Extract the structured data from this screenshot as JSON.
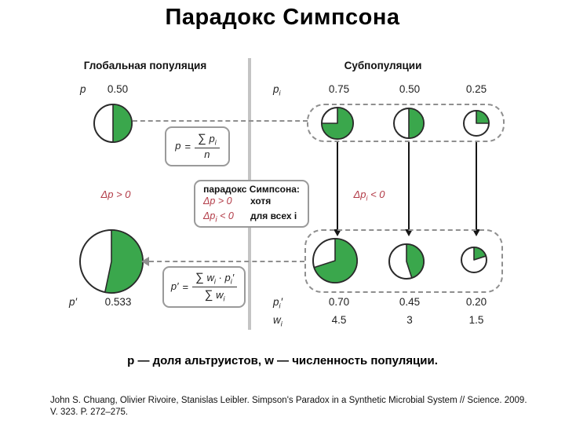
{
  "title": "Парадокс Симпсона",
  "colors": {
    "green": "#3aa74c",
    "red": "#b23b47"
  },
  "left": {
    "header": "Глобальная популяция",
    "top": {
      "var": "p",
      "sub": "",
      "prime": "",
      "value": "0.50",
      "fraction": 0.5
    },
    "delta": {
      "pre": "Δp",
      "sub": "",
      "post": " > 0"
    },
    "formula1": {
      "lhs": "p",
      "lhs_sub": "",
      "lhs_prime": "",
      "eq": "=",
      "num_sigma": "∑",
      "num_var": "p",
      "num_sub": "i",
      "den": "n"
    },
    "bottom": {
      "var": "p",
      "sub": "",
      "prime": "′",
      "value": "0.533",
      "fraction": 0.533
    },
    "formula2": {
      "lhs": "p",
      "lhs_sub": "",
      "lhs_prime": "′",
      "eq": "=",
      "num_sigma": "∑",
      "num_var1": "w",
      "num_sub1": "i",
      "dot": "·",
      "num_var2": "p",
      "num_sub2": "i",
      "num_prime": "′",
      "den_sigma": "∑",
      "den_var": "w",
      "den_sub": "i"
    }
  },
  "right": {
    "header": "Субпопуляции",
    "top_label": {
      "var": "p",
      "sub": "i",
      "prime": ""
    },
    "delta": {
      "pre": "Δp",
      "sub": "i",
      "post": " < 0"
    },
    "top_values": [
      "0.75",
      "0.50",
      "0.25"
    ],
    "top_fractions": [
      0.75,
      0.5,
      0.25
    ],
    "bottom_label": {
      "var": "p",
      "sub": "i",
      "prime": "′"
    },
    "weight_label": {
      "var": "w",
      "sub": "i",
      "prime": ""
    },
    "bottom_values": [
      "0.70",
      "0.45",
      "0.20"
    ],
    "bottom_fractions": [
      0.7,
      0.45,
      0.2
    ],
    "weight_values": [
      "4.5",
      "3",
      "1.5"
    ]
  },
  "paradox_box": {
    "title": "парадокс Симпсона:",
    "row1": {
      "pre": "Δp",
      "sub": "",
      "post": " > 0",
      "text": "хотя"
    },
    "row2": {
      "pre": "Δp",
      "sub": "i",
      "post": " < 0",
      "text": "для всех i"
    }
  },
  "caption": "p — доля альтруистов, w — численность популяции.",
  "citation": "John S. Chuang, Olivier Rivoire, Stanislas Leibler. Simpson's Paradox in a Synthetic Microbial System // Science. 2009. V. 323. P. 272–275."
}
